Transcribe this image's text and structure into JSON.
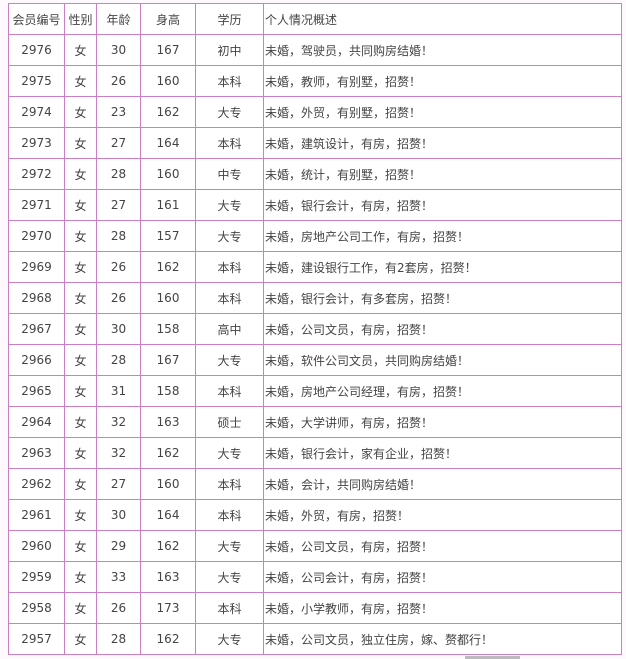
{
  "headers": [
    "会员编号",
    "性别",
    "年龄",
    "身高",
    "学历",
    "个人情况概述"
  ],
  "rows": [
    [
      "2976",
      "女",
      "30",
      "167",
      "初中",
      "未婚，驾驶员，共同购房结婚！"
    ],
    [
      "2975",
      "女",
      "26",
      "160",
      "本科",
      "未婚，教师，有别墅，招赘！"
    ],
    [
      "2974",
      "女",
      "23",
      "162",
      "大专",
      "未婚，外贸，有别墅，招赘！"
    ],
    [
      "2973",
      "女",
      "27",
      "164",
      "本科",
      "未婚，建筑设计，有房，招赘！"
    ],
    [
      "2972",
      "女",
      "28",
      "160",
      "中专",
      "未婚，统计，有别墅，招赘！"
    ],
    [
      "2971",
      "女",
      "27",
      "161",
      "大专",
      "未婚，银行会计，有房，招赘！"
    ],
    [
      "2970",
      "女",
      "28",
      "157",
      "大专",
      "未婚，房地产公司工作，有房，招赘！"
    ],
    [
      "2969",
      "女",
      "26",
      "162",
      "本科",
      "未婚，建设银行工作，有2套房，招赘！"
    ],
    [
      "2968",
      "女",
      "26",
      "160",
      "本科",
      "未婚，银行会计，有多套房，招赘！"
    ],
    [
      "2967",
      "女",
      "30",
      "158",
      "高中",
      "未婚，公司文员，有房，招赘！"
    ],
    [
      "2966",
      "女",
      "28",
      "167",
      "大专",
      "未婚，软件公司文员，共同购房结婚！"
    ],
    [
      "2965",
      "女",
      "31",
      "158",
      "本科",
      "未婚，房地产公司经理，有房，招赘！"
    ],
    [
      "2964",
      "女",
      "32",
      "163",
      "硕士",
      "未婚，大学讲师，有房，招赘！"
    ],
    [
      "2963",
      "女",
      "32",
      "162",
      "大专",
      "未婚，银行会计，家有企业，招赘！"
    ],
    [
      "2962",
      "女",
      "27",
      "160",
      "本科",
      "未婚，会计，共同购房结婚！"
    ],
    [
      "2961",
      "女",
      "30",
      "164",
      "本科",
      "未婚，外贸，有房，招赘！"
    ],
    [
      "2960",
      "女",
      "29",
      "162",
      "大专",
      "未婚，公司文员，有房，招赘！"
    ],
    [
      "2959",
      "女",
      "33",
      "163",
      "大专",
      "未婚，公司会计，有房，招赘！"
    ],
    [
      "2958",
      "女",
      "26",
      "173",
      "本科",
      "未婚，小学教师，有房，招赘！"
    ],
    [
      "2957",
      "女",
      "28",
      "162",
      "大专",
      "未婚，公司文员，独立住房，嫁、赘都行！"
    ]
  ]
}
